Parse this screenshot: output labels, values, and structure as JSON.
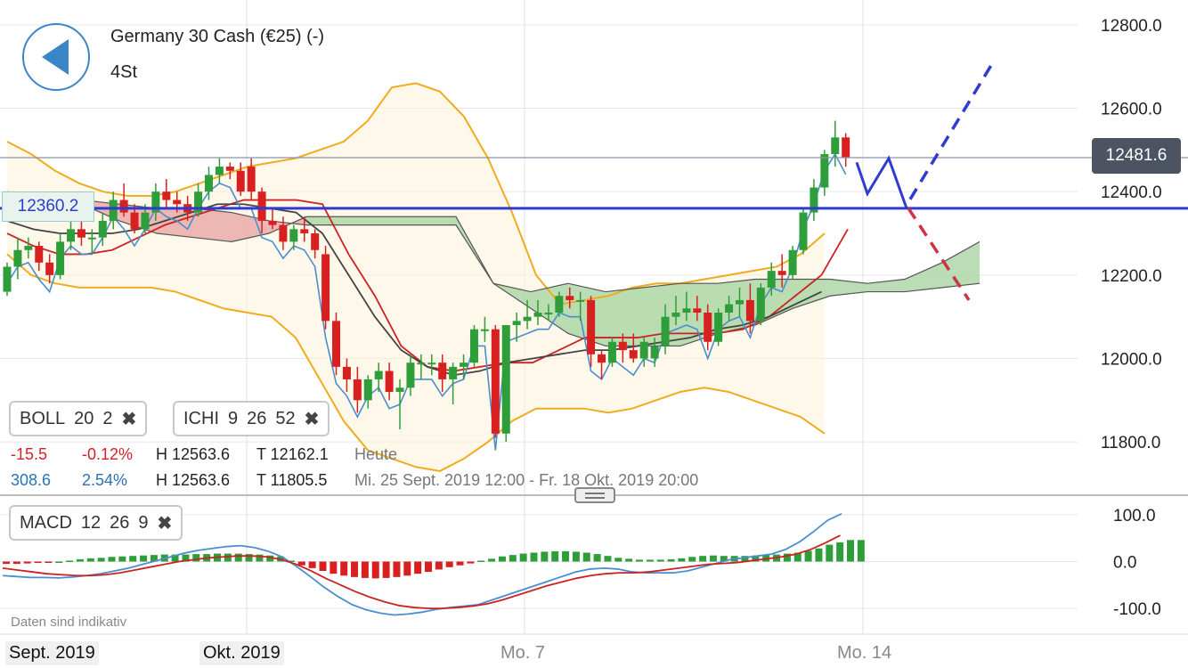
{
  "header": {
    "title": "Germany 30 Cash (€25) (-)",
    "period": "4St",
    "back_icon": "back-arrow-icon"
  },
  "indicators": {
    "boll": {
      "name": "BOLL",
      "p1": "20",
      "p2": "2",
      "close": "✖"
    },
    "ichi": {
      "name": "ICHI",
      "p1": "9",
      "p2": "26",
      "p3": "52",
      "close": "✖"
    },
    "macd": {
      "name": "MACD",
      "p1": "12",
      "p2": "26",
      "p3": "9",
      "close": "✖"
    }
  },
  "stats": {
    "today": {
      "change": "-15.5",
      "pct": "-0.12%",
      "high": "H 12563.6",
      "low": "T 12162.1",
      "label": "Heute"
    },
    "range": {
      "change": "308.6",
      "pct": "2.54%",
      "high": "H 12563.6",
      "low": "T 11805.5",
      "label": "Mi. 25 Sept. 2019 12:00 - Fr. 18 Okt. 2019 20:00"
    }
  },
  "disclaimer": "Daten sind indikativ",
  "price_tags": {
    "current": "12481.6",
    "level": "12360.2"
  },
  "colors": {
    "up": "#2e9e3a",
    "down": "#d92020",
    "boll": "#f0ab1e",
    "tenkan": "#cc2222",
    "kijun": "#444444",
    "chikou": "#4a8ed0",
    "level_line": "#2f3bd1",
    "cloud_up": "#a9d4a3",
    "cloud_down": "#e8a6a6"
  },
  "chart_data": [
    {
      "type": "candlestick",
      "title": "Germany 30 Cash (€25) (-)",
      "x_labels": [
        "Sept. 2019",
        "Okt. 2019",
        "Mo. 7",
        "Mo. 14"
      ],
      "yaxis": {
        "ticks": [
          "12800.0",
          "12600.0",
          "12400.0",
          "12200.0",
          "12000.0",
          "11800.0"
        ],
        "range": [
          11720,
          12830
        ]
      },
      "current_price": 12481.6,
      "horizontal_level": 12360.2,
      "candles": [
        [
          12160,
          12230,
          12150,
          12220
        ],
        [
          12220,
          12290,
          12190,
          12260
        ],
        [
          12260,
          12290,
          12240,
          12270
        ],
        [
          12270,
          12280,
          12210,
          12230
        ],
        [
          12230,
          12250,
          12180,
          12200
        ],
        [
          12200,
          12300,
          12190,
          12280
        ],
        [
          12280,
          12330,
          12260,
          12310
        ],
        [
          12310,
          12350,
          12270,
          12290
        ],
        [
          12290,
          12310,
          12250,
          12290
        ],
        [
          12290,
          12350,
          12270,
          12330
        ],
        [
          12330,
          12400,
          12310,
          12380
        ],
        [
          12380,
          12420,
          12340,
          12350
        ],
        [
          12350,
          12370,
          12300,
          12310
        ],
        [
          12310,
          12370,
          12300,
          12350
        ],
        [
          12350,
          12420,
          12330,
          12400
        ],
        [
          12400,
          12430,
          12360,
          12380
        ],
        [
          12380,
          12400,
          12350,
          12370
        ],
        [
          12370,
          12390,
          12330,
          12350
        ],
        [
          12350,
          12420,
          12340,
          12400
        ],
        [
          12400,
          12460,
          12380,
          12440
        ],
        [
          12440,
          12480,
          12420,
          12460
        ],
        [
          12460,
          12470,
          12430,
          12450
        ],
        [
          12450,
          12470,
          12390,
          12400
        ],
        [
          12460,
          12480,
          12380,
          12400
        ],
        [
          12400,
          12410,
          12300,
          12330
        ],
        [
          12330,
          12360,
          12310,
          12320
        ],
        [
          12320,
          12340,
          12260,
          12280
        ],
        [
          12280,
          12320,
          12260,
          12310
        ],
        [
          12310,
          12340,
          12280,
          12300
        ],
        [
          12300,
          12310,
          12240,
          12260
        ],
        [
          12250,
          12270,
          12070,
          12090
        ],
        [
          12090,
          12110,
          11960,
          11980
        ],
        [
          11980,
          12000,
          11920,
          11950
        ],
        [
          11950,
          11980,
          11870,
          11900
        ],
        [
          11900,
          11960,
          11880,
          11950
        ],
        [
          11950,
          11990,
          11920,
          11970
        ],
        [
          11970,
          11990,
          11900,
          11920
        ],
        [
          11920,
          11950,
          11830,
          11930
        ],
        [
          11930,
          12010,
          11910,
          11990
        ],
        [
          11990,
          12010,
          11950,
          11990
        ],
        [
          11990,
          12010,
          11960,
          11990
        ],
        [
          11990,
          12010,
          11920,
          11950
        ],
        [
          11950,
          11990,
          11890,
          11980
        ],
        [
          11980,
          12010,
          11950,
          11990
        ],
        [
          11990,
          12080,
          11980,
          12070
        ],
        [
          12070,
          12100,
          12040,
          12070
        ],
        [
          12070,
          12080,
          11810,
          11820
        ],
        [
          11820,
          12080,
          11800,
          12080
        ],
        [
          12080,
          12110,
          12040,
          12090
        ],
        [
          12090,
          12140,
          12070,
          12100
        ],
        [
          12100,
          12140,
          12080,
          12110
        ],
        [
          12110,
          12130,
          12090,
          12110
        ],
        [
          12110,
          12160,
          12100,
          12150
        ],
        [
          12150,
          12170,
          12120,
          12140
        ],
        [
          12140,
          12160,
          12090,
          12140
        ],
        [
          12140,
          12150,
          11980,
          12010
        ],
        [
          12010,
          12020,
          11950,
          11990
        ],
        [
          11990,
          12050,
          11980,
          12040
        ],
        [
          12040,
          12060,
          11990,
          12020
        ],
        [
          12020,
          12060,
          11990,
          12000
        ],
        [
          12000,
          12050,
          11980,
          12040
        ],
        [
          12000,
          12050,
          11980,
          12030
        ],
        [
          12030,
          12130,
          12010,
          12100
        ],
        [
          12100,
          12150,
          12080,
          12110
        ],
        [
          12110,
          12160,
          12090,
          12120
        ],
        [
          12120,
          12150,
          12090,
          12110
        ],
        [
          12110,
          12130,
          12020,
          12040
        ],
        [
          12040,
          12120,
          12030,
          12110
        ],
        [
          12110,
          12150,
          12090,
          12130
        ],
        [
          12130,
          12170,
          12100,
          12140
        ],
        [
          12140,
          12180,
          12060,
          12090
        ],
        [
          12090,
          12180,
          12080,
          12170
        ],
        [
          12170,
          12230,
          12150,
          12210
        ],
        [
          12210,
          12250,
          12170,
          12200
        ],
        [
          12200,
          12270,
          12190,
          12260
        ],
        [
          12260,
          12360,
          12250,
          12350
        ],
        [
          12350,
          12430,
          12330,
          12410
        ],
        [
          12410,
          12500,
          12390,
          12490
        ],
        [
          12490,
          12570,
          12460,
          12530
        ],
        [
          12530,
          12540,
          12460,
          12481.6
        ]
      ],
      "bollinger": {
        "upper": [
          12520,
          12490,
          12450,
          12420,
          12400,
          12390,
          12390,
          12400,
          12420,
          12440,
          12460,
          12470,
          12480,
          12500,
          12520,
          12570,
          12650,
          12660,
          12640,
          12580,
          12480,
          12350,
          12200,
          12130,
          12140,
          12150,
          12170,
          12180,
          12180,
          12190,
          12200,
          12210,
          12220,
          12250,
          12300
        ],
        "lower": [
          12250,
          12200,
          12180,
          12170,
          12170,
          12170,
          12170,
          12160,
          12140,
          12120,
          12110,
          12100,
          12050,
          11950,
          11850,
          11780,
          11760,
          11740,
          11730,
          11760,
          11800,
          11850,
          11880,
          11880,
          11880,
          11870,
          11880,
          11900,
          11920,
          11930,
          11920,
          11900,
          11880,
          11860,
          11820
        ]
      },
      "ichimoku": {
        "tenkan": [
          12300,
          12270,
          12250,
          12250,
          12260,
          12290,
          12320,
          12340,
          12360,
          12380,
          12380,
          12380,
          12370,
          12250,
          12150,
          12030,
          11980,
          11970,
          11980,
          11990,
          11990,
          12020,
          12050,
          12050,
          12050,
          12060,
          12060,
          12060,
          12070,
          12100,
          12150,
          12200,
          12310
        ],
        "kijun": [
          12330,
          12310,
          12300,
          12300,
          12300,
          12310,
          12330,
          12350,
          12370,
          12370,
          12360,
          12350,
          12300,
          12200,
          12100,
          12020,
          11980,
          11960,
          11970,
          11990,
          12000,
          12010,
          12020,
          12020,
          12030,
          12040,
          12050,
          12070,
          12080,
          12100,
          12130,
          12160
        ],
        "cloud": {
          "span_a": [
            12400,
            12380,
            12370,
            12330,
            12300,
            12290,
            12280,
            12300,
            12340,
            12340,
            12340,
            12340,
            12340,
            12180,
            12160,
            12180,
            12160,
            12170,
            12180,
            12180,
            12190,
            12190,
            12190,
            12180,
            12190,
            12230,
            12280
          ],
          "span_b": [
            12360,
            12370,
            12380,
            12370,
            12360,
            12360,
            12350,
            12330,
            12320,
            12320,
            12320,
            12320,
            12320,
            12180,
            12120,
            12060,
            12030,
            12030,
            12030,
            12060,
            12080,
            12120,
            12150,
            12160,
            12160,
            12170,
            12180
          ]
        }
      }
    },
    {
      "type": "bar+line",
      "title": "MACD 12 26 9",
      "yaxis": {
        "ticks": [
          "100.0",
          "0.0",
          "-100.0"
        ],
        "range": [
          -130,
          120
        ]
      },
      "histogram": [
        -5,
        -5,
        -4,
        -3,
        -2,
        0,
        2,
        5,
        7,
        8,
        10,
        11,
        12,
        13,
        14,
        15,
        15,
        15,
        16,
        16,
        17,
        17,
        17,
        16,
        15,
        13,
        11,
        2,
        -8,
        -14,
        -20,
        -26,
        -30,
        -33,
        -35,
        -36,
        -35,
        -33,
        -30,
        -26,
        -22,
        -17,
        -12,
        -8,
        -4,
        2,
        6,
        11,
        14,
        17,
        19,
        21,
        22,
        22,
        21,
        19,
        16,
        12,
        8,
        6,
        4,
        4,
        4,
        5,
        7,
        10,
        12,
        13,
        12,
        12,
        12,
        13,
        14,
        15,
        17,
        19,
        23,
        28,
        36,
        41,
        46,
        46
      ],
      "macd_line": [
        -30,
        -32,
        -34,
        -34,
        -35,
        -33,
        -30,
        -26,
        -20,
        -14,
        -6,
        2,
        10,
        18,
        24,
        28,
        32,
        34,
        30,
        22,
        10,
        -10,
        -32,
        -55,
        -75,
        -92,
        -103,
        -110,
        -114,
        -112,
        -108,
        -102,
        -98,
        -95,
        -92,
        -82,
        -72,
        -62,
        -52,
        -42,
        -32,
        -22,
        -16,
        -14,
        -16,
        -22,
        -24,
        -24,
        -24,
        -20,
        -12,
        -4,
        4,
        8,
        12,
        16,
        26,
        42,
        64,
        88,
        102
      ],
      "signal_line": [
        -14,
        -18,
        -22,
        -26,
        -28,
        -30,
        -30,
        -28,
        -24,
        -18,
        -12,
        -6,
        0,
        4,
        8,
        10,
        12,
        12,
        10,
        4,
        -6,
        -20,
        -36,
        -50,
        -64,
        -76,
        -86,
        -94,
        -98,
        -100,
        -100,
        -98,
        -95,
        -90,
        -82,
        -72,
        -62,
        -52,
        -44,
        -36,
        -30,
        -26,
        -24,
        -24,
        -22,
        -18,
        -14,
        -10,
        -6,
        -4,
        -2,
        2,
        6,
        10,
        16,
        26,
        40,
        56
      ]
    }
  ]
}
